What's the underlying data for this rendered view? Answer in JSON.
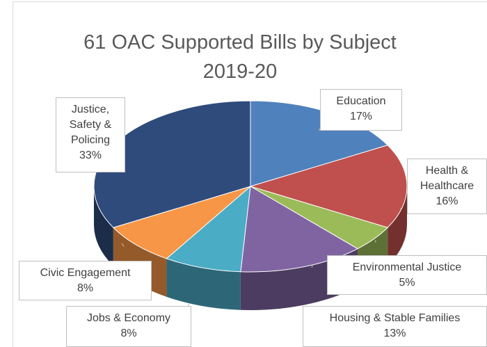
{
  "chart_data": {
    "type": "pie",
    "title": "61 OAC Supported Bills by Subject 2019-20",
    "categories": [
      "Education",
      "Health & Healthcare",
      "Environmental Justice",
      "Housing & Stable Families",
      "Jobs & Economy",
      "Civic Engagement",
      "Justice, Safety & Policing"
    ],
    "values": [
      17,
      16,
      5,
      13,
      8,
      8,
      33
    ],
    "value_labels": [
      "17%",
      "16%",
      "5%",
      "13%",
      "8%",
      "8%",
      "33%"
    ],
    "colors": [
      "#4f81bd",
      "#c0504d",
      "#9bbb59",
      "#8064a2",
      "#4bacc6",
      "#f79646",
      "#2f4b7c"
    ]
  }
}
